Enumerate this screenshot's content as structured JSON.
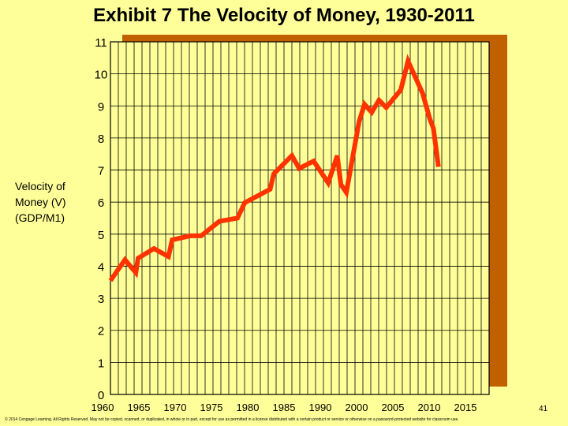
{
  "chart_data": {
    "type": "line",
    "title": "Exhibit 7 The Velocity of Money, 1930-2011",
    "ylabel_lines": [
      "Velocity of",
      "Money (V)",
      "(GDP/M1)"
    ],
    "y_ticks": [
      "0",
      "1",
      "2",
      "3",
      "4",
      "5",
      "6",
      "7",
      "8",
      "9",
      "10",
      "11"
    ],
    "x_ticks": [
      "1960",
      "1965",
      "1970",
      "1975",
      "1980",
      "1985",
      "1990",
      "2000",
      "2005",
      "2010",
      "2015"
    ],
    "ylim": [
      0,
      11
    ],
    "grid": true,
    "series": [
      {
        "color": "#ff3300",
        "x": [
          1960.0,
          1962.0,
          1963.5,
          1963.8,
          1966.0,
          1968.0,
          1968.5,
          1971.0,
          1972.5,
          1975.0,
          1977.5,
          1978.5,
          1982.0,
          1982.5,
          1985.0,
          1986.0,
          1988.0,
          1990.0,
          1992.5,
          1993.5,
          1995.0,
          1998.5,
          2000.0,
          2001.0,
          2002.0,
          2003.0,
          2005.0,
          2006.0,
          2008.0,
          2009.0,
          2009.5,
          2010.2
        ],
        "y": [
          3.55,
          4.2,
          3.8,
          4.25,
          4.55,
          4.3,
          4.82,
          4.95,
          4.95,
          5.4,
          5.5,
          5.98,
          6.4,
          6.88,
          7.45,
          7.05,
          7.28,
          6.6,
          7.45,
          6.55,
          6.3,
          8.5,
          9.05,
          8.8,
          9.18,
          8.95,
          9.5,
          10.4,
          9.4,
          8.6,
          8.3,
          7.1
        ]
      }
    ]
  },
  "footer": {
    "copyright": "© 2014 Cengage Learning. All Rights Reserved. May not be copied, scanned, or duplicated, in whole or in part, except for use as permitted in a license distributed with a certain product or service or otherwise on a password-protected website for classroom use.",
    "page_number": "41"
  }
}
